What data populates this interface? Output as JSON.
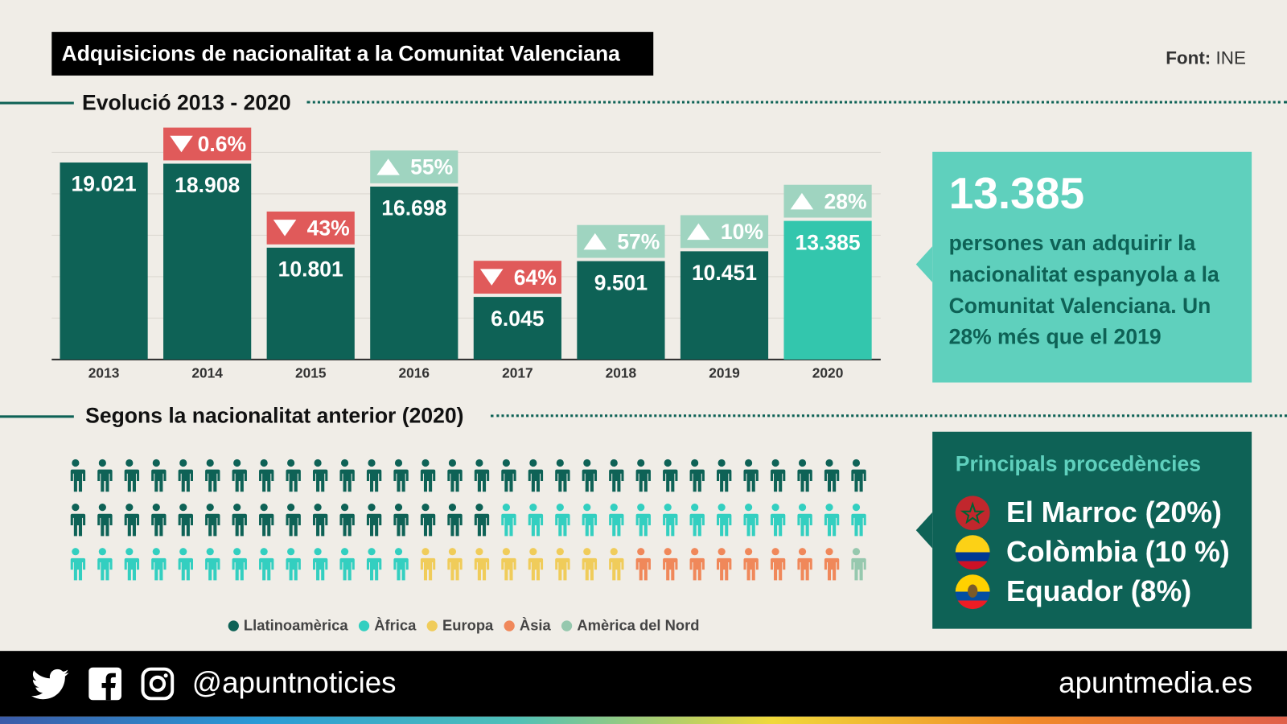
{
  "header": {
    "title": "Adquisicions de nacionalitat a la Comunitat Valenciana",
    "source_label": "Font:",
    "source_value": "INE"
  },
  "section1": {
    "title": "Evolució 2013 - 2020"
  },
  "section2": {
    "title": "Segons la nacionalitat anterior (2020)"
  },
  "chart_data": [
    {
      "type": "bar",
      "categories": [
        "2013",
        "2014",
        "2015",
        "2016",
        "2017",
        "2018",
        "2019",
        "2020"
      ],
      "values": [
        19021,
        18908,
        10801,
        16698,
        6045,
        9501,
        10451,
        13385
      ],
      "value_labels": [
        "19.021",
        "18.908",
        "10.801",
        "16.698",
        "6.045",
        "9.501",
        "10.451",
        "13.385"
      ],
      "change_labels": [
        null,
        "0.6%",
        "43%",
        "55%",
        "64%",
        "57%",
        "10%",
        "28%"
      ],
      "change_direction": [
        null,
        "down",
        "down",
        "up",
        "down",
        "up",
        "up",
        "up"
      ],
      "ylim": [
        0,
        20000
      ],
      "grid": true,
      "colors": {
        "bar": "#0e6256",
        "highlight": "#33c6ad",
        "down": "#e05a5a",
        "up": "#9fd4c0"
      }
    },
    {
      "type": "pictogram",
      "title": "",
      "total_icons": 90,
      "series": [
        {
          "name": "Llatinoamèrica",
          "count": 46,
          "color": "#0e6256"
        },
        {
          "name": "Àfrica",
          "count": 27,
          "color": "#33cfc0"
        },
        {
          "name": "Europa",
          "count": 8,
          "color": "#f0cc5a"
        },
        {
          "name": "Àsia",
          "count": 8,
          "color": "#f0885a"
        },
        {
          "name": "Amèrica del Nord",
          "count": 1,
          "color": "#96c8ae"
        }
      ],
      "legend_position": "bottom"
    }
  ],
  "callout": {
    "number": "13.385",
    "text": "persones van adquirir la nacionalitat espanyola a la Comunitat Valenciana. Un 28% més que el 2019"
  },
  "origins": {
    "title": "Principals procedències",
    "items": [
      {
        "label": "El Marroc (20%)",
        "flag": "morocco-flag-icon"
      },
      {
        "label": "Colòmbia (10 %)",
        "flag": "colombia-flag-icon"
      },
      {
        "label": "Equador (8%)",
        "flag": "ecuador-flag-icon"
      }
    ]
  },
  "footer": {
    "handle": "@apuntnoticies",
    "site": "apuntmedia.es",
    "icons": [
      "twitter-icon",
      "facebook-icon",
      "instagram-icon"
    ]
  }
}
